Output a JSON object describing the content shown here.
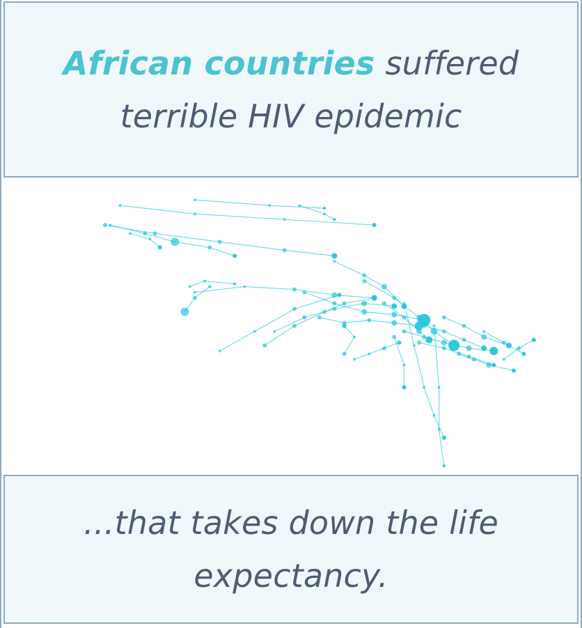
{
  "intro_panel": {
    "highlight": "African countries",
    "line1_rest": " suffered",
    "line2": "terrible HIV epidemic"
  },
  "outro_panel": {
    "line1": "...that takes down the life",
    "line2": "expectancy."
  },
  "colors": {
    "accent": "#4bc3d1",
    "trail": "#26c6da",
    "text": "#4e5c74",
    "panel_bg": "#f1f8fb",
    "border": "#8fa9bd"
  },
  "chart_data": {
    "type": "scatter",
    "title": "",
    "xlabel": "",
    "ylabel": "",
    "xlim": [
      0,
      100
    ],
    "ylim": [
      0,
      100
    ],
    "series": [
      {
        "name": "trail-01",
        "x": [
          12,
          22,
          35,
          48,
          58
        ],
        "y": [
          88,
          85,
          82,
          79,
          77
        ],
        "size": [
          3,
          3,
          3,
          3,
          4
        ]
      },
      {
        "name": "trail-02",
        "x": [
          15,
          30,
          48,
          66
        ],
        "y": [
          95,
          92,
          90,
          88
        ],
        "size": [
          2,
          2,
          2,
          3
        ]
      },
      {
        "name": "trail-03",
        "x": [
          30,
          45,
          56
        ],
        "y": [
          97,
          95,
          94
        ],
        "size": [
          2,
          2,
          2
        ]
      },
      {
        "name": "trail-04",
        "x": [
          51,
          56,
          58
        ],
        "y": [
          95,
          92,
          90
        ],
        "size": [
          2,
          2,
          2
        ]
      },
      {
        "name": "trail-05",
        "x": [
          13,
          20,
          26,
          33,
          38
        ],
        "y": [
          88,
          85,
          82,
          80,
          77
        ],
        "size": [
          2,
          3,
          6,
          3,
          3
        ]
      },
      {
        "name": "trail-06",
        "x": [
          17,
          21,
          23
        ],
        "y": [
          85,
          83,
          80
        ],
        "size": [
          2,
          2,
          3
        ]
      },
      {
        "name": "trail-07",
        "x": [
          29,
          32,
          38
        ],
        "y": [
          66,
          68,
          67
        ],
        "size": [
          2,
          2,
          2
        ]
      },
      {
        "name": "trail-08",
        "x": [
          28,
          30,
          33
        ],
        "y": [
          57,
          62,
          66
        ],
        "size": [
          6,
          3,
          2
        ]
      },
      {
        "name": "trail-09",
        "x": [
          30,
          40,
          50,
          58,
          66
        ],
        "y": [
          64,
          66,
          65,
          63,
          62
        ],
        "size": [
          2,
          2,
          3,
          4,
          4
        ]
      },
      {
        "name": "trail-10",
        "x": [
          35,
          42,
          50,
          59
        ],
        "y": [
          43,
          50,
          58,
          63
        ],
        "size": [
          2,
          2,
          3,
          3
        ]
      },
      {
        "name": "trail-11",
        "x": [
          44,
          50,
          56,
          60,
          66
        ],
        "y": [
          45,
          52,
          57,
          60,
          62
        ],
        "size": [
          3,
          3,
          3,
          3,
          4
        ]
      },
      {
        "name": "trail-12",
        "x": [
          46,
          52,
          58,
          64,
          70
        ],
        "y": [
          50,
          55,
          58,
          60,
          59
        ],
        "size": [
          2,
          3,
          3,
          4,
          4
        ]
      },
      {
        "name": "trail-13",
        "x": [
          52,
          58,
          64,
          70,
          76
        ],
        "y": [
          64,
          60,
          57,
          56,
          54
        ],
        "size": [
          3,
          3,
          4,
          4,
          9
        ]
      },
      {
        "name": "trail-14",
        "x": [
          55,
          60,
          65,
          70,
          75
        ],
        "y": [
          55,
          53,
          54,
          53,
          52
        ],
        "size": [
          3,
          3,
          3,
          4,
          6
        ]
      },
      {
        "name": "trail-15",
        "x": [
          58,
          64,
          68,
          72
        ],
        "y": [
          75,
          70,
          66,
          59
        ],
        "size": [
          2,
          3,
          4,
          4
        ]
      },
      {
        "name": "trail-16",
        "x": [
          64,
          70,
          75,
          78,
          82
        ],
        "y": [
          68,
          62,
          55,
          50,
          45
        ],
        "size": [
          3,
          3,
          4,
          5,
          8
        ]
      },
      {
        "name": "trail-17",
        "x": [
          68,
          72,
          75,
          77
        ],
        "y": [
          60,
          55,
          50,
          47
        ],
        "size": [
          3,
          3,
          4,
          5
        ]
      },
      {
        "name": "trail-18",
        "x": [
          72,
          76,
          80,
          85,
          90
        ],
        "y": [
          50,
          48,
          46,
          44,
          43
        ],
        "size": [
          3,
          3,
          4,
          4,
          6
        ]
      },
      {
        "name": "trail-19",
        "x": [
          76,
          80,
          84,
          88
        ],
        "y": [
          52,
          50,
          47,
          44
        ],
        "size": [
          3,
          3,
          3,
          4
        ]
      },
      {
        "name": "trail-20",
        "x": [
          80,
          84,
          88,
          93
        ],
        "y": [
          55,
          52,
          48,
          45
        ],
        "size": [
          3,
          3,
          4,
          4
        ]
      },
      {
        "name": "trail-21",
        "x": [
          83,
          86,
          89,
          94
        ],
        "y": [
          42,
          40,
          38,
          36
        ],
        "size": [
          3,
          3,
          4,
          3
        ]
      },
      {
        "name": "trail-22",
        "x": [
          88,
          92,
          96
        ],
        "y": [
          50,
          46,
          42
        ],
        "size": [
          2,
          3,
          3
        ]
      },
      {
        "name": "trail-23",
        "x": [
          92,
          95,
          98
        ],
        "y": [
          40,
          44,
          47
        ],
        "size": [
          2,
          3,
          3
        ]
      },
      {
        "name": "trail-24",
        "x": [
          72,
          74,
          76,
          78,
          80
        ],
        "y": [
          60,
          45,
          30,
          20,
          12
        ],
        "size": [
          2,
          2,
          2,
          2,
          3
        ]
      },
      {
        "name": "trail-25",
        "x": [
          78,
          79,
          79,
          80
        ],
        "y": [
          52,
          30,
          15,
          2
        ],
        "size": [
          2,
          2,
          2,
          2
        ]
      },
      {
        "name": "trail-26",
        "x": [
          70,
          72,
          72
        ],
        "y": [
          48,
          38,
          30
        ],
        "size": [
          3,
          2,
          3
        ]
      },
      {
        "name": "trail-27",
        "x": [
          62,
          65,
          68,
          71
        ],
        "y": [
          40,
          42,
          44,
          46
        ],
        "size": [
          2,
          2,
          3,
          3
        ]
      },
      {
        "name": "trail-28",
        "x": [
          75,
          80,
          85,
          90
        ],
        "y": [
          46,
          44,
          41,
          38
        ],
        "size": [
          3,
          3,
          3,
          3
        ]
      },
      {
        "name": "trail-29",
        "x": [
          60,
          62,
          60
        ],
        "y": [
          42,
          48,
          52
        ],
        "size": [
          3,
          2,
          3
        ]
      }
    ]
  }
}
